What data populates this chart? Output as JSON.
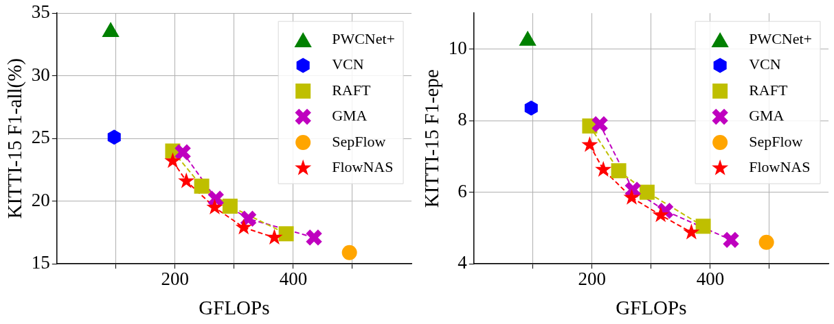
{
  "chart_data": [
    {
      "type": "scatter",
      "xlabel": "GFLOPs",
      "ylabel": "KITTI-15 F1-all(%)",
      "xlim": [
        0,
        600
      ],
      "ylim": [
        15,
        35
      ],
      "xticks": [
        {
          "value": 100,
          "label": null
        },
        {
          "value": 200,
          "label": "200"
        },
        {
          "value": 300,
          "label": null
        },
        {
          "value": 400,
          "label": "400"
        },
        {
          "value": 500,
          "label": null
        }
      ],
      "yticks": [
        15,
        20,
        25,
        30,
        35
      ],
      "grid": true,
      "legend": "top right",
      "series": [
        {
          "name": "PWCNet+",
          "color": "#008000",
          "marker": "triangle",
          "x": [
            91
          ],
          "values": [
            33.7
          ]
        },
        {
          "name": "VCN",
          "color": "#0000ff",
          "x": [
            97
          ],
          "values": [
            25.1
          ]
        },
        {
          "name": "RAFT",
          "type": "line",
          "color": "#bfbf00",
          "marker": "square",
          "line_style": "dashed",
          "x": [
            196,
            245,
            293,
            388
          ],
          "values": [
            24.0,
            21.2,
            19.6,
            17.4
          ]
        },
        {
          "name": "GMA",
          "type": "line",
          "color": "#bf00bf",
          "marker": "cross",
          "line_style": "dashed",
          "x": [
            213,
            269,
            324,
            435
          ],
          "values": [
            23.9,
            20.2,
            18.6,
            17.1
          ]
        },
        {
          "name": "SepFlow",
          "color": "#ffa500",
          "marker": "circle",
          "x": [
            495
          ],
          "values": [
            15.9
          ]
        },
        {
          "name": "FlowNAS",
          "type": "line",
          "color": "#ff0000",
          "marker": "star",
          "line_style": "dashed",
          "x": [
            196,
            219,
            267,
            316,
            368
          ],
          "values": [
            23.2,
            21.6,
            19.5,
            17.9,
            17.1
          ]
        }
      ]
    },
    {
      "type": "scatter",
      "xlabel": "GFLOPs",
      "ylabel": "KITTI-15 F1-epe",
      "xlim": [
        0,
        600
      ],
      "ylim": [
        4,
        11
      ],
      "xticks": [
        {
          "value": 100,
          "label": null
        },
        {
          "value": 200,
          "label": "200"
        },
        {
          "value": 300,
          "label": null
        },
        {
          "value": 400,
          "label": "400"
        },
        {
          "value": 500,
          "label": null
        }
      ],
      "yticks": [
        4,
        6,
        8,
        10
      ],
      "grid": true,
      "legend": "top right",
      "series": [
        {
          "name": "PWCNet+",
          "color": "#008000",
          "marker": "triangle",
          "x": [
            91
          ],
          "values": [
            10.3
          ]
        },
        {
          "name": "VCN",
          "color": "#0000ff",
          "x": [
            97
          ],
          "values": [
            8.35
          ]
        },
        {
          "name": "RAFT",
          "type": "line",
          "color": "#bfbf00",
          "marker": "square",
          "line_style": "dashed",
          "x": [
            196,
            245,
            293,
            388
          ],
          "values": [
            7.85,
            6.6,
            6.0,
            5.05
          ]
        },
        {
          "name": "GMA",
          "type": "line",
          "color": "#bf00bf",
          "marker": "cross",
          "line_style": "dashed",
          "x": [
            213,
            269,
            324,
            435
          ],
          "values": [
            7.9,
            6.07,
            5.48,
            4.67
          ]
        },
        {
          "name": "SepFlow",
          "color": "#ffa500",
          "marker": "circle",
          "x": [
            495
          ],
          "values": [
            4.6
          ]
        },
        {
          "name": "FlowNAS",
          "type": "line",
          "color": "#ff0000",
          "marker": "star",
          "line_style": "dashed",
          "x": [
            196,
            219,
            267,
            316,
            368
          ],
          "values": [
            7.32,
            6.63,
            5.85,
            5.36,
            4.88
          ]
        }
      ]
    }
  ]
}
